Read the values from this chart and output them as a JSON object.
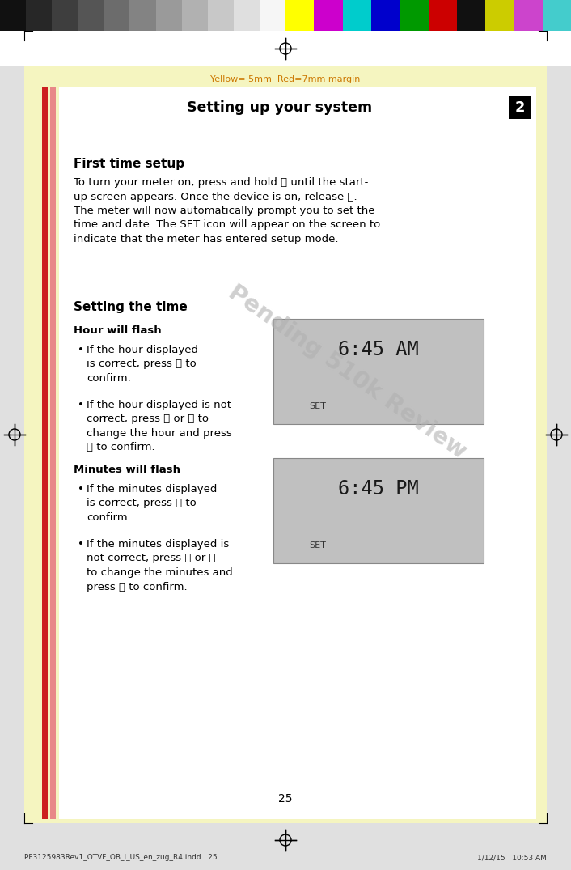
{
  "page_bg": "#e0e0e0",
  "yellow_margin_color": "#f5f5c0",
  "content_bg": "#ffffff",
  "title_text": "Setting up your system",
  "title_number": "2",
  "margin_text": "Yellow= 5mm  Red=7mm margin",
  "margin_text_color": "#cc7700",
  "watermark_text": "Pending 510k Review",
  "watermark_color": "#b0b0b0",
  "section1_title": "First time setup",
  "section2_title": "Setting the time",
  "subsection1_title": "Hour will flash",
  "subsection2_title": "Minutes will flash",
  "display1_text": "6:45 AM",
  "display2_text": "6:45 PM",
  "display_set_text": "SET",
  "display_bg": "#c0c0c0",
  "footer_text": "25",
  "footer_left": "PF3125983Rev1_OTVF_OB_I_US_en_zug_R4.indd   25",
  "footer_right": "1/12/15   10:53 AM",
  "colorbar_grays": [
    "#111111",
    "#272727",
    "#3e3e3e",
    "#555555",
    "#6c6c6c",
    "#838383",
    "#9a9a9a",
    "#b1b1b1",
    "#c8c8c8",
    "#dfdfdf",
    "#f6f6f6"
  ],
  "colorbar_colors": [
    "#ffff00",
    "#cc00cc",
    "#00cccc",
    "#0000cc",
    "#009900",
    "#cc0000",
    "#111111",
    "#cccc00",
    "#cc44cc",
    "#44cccc"
  ]
}
